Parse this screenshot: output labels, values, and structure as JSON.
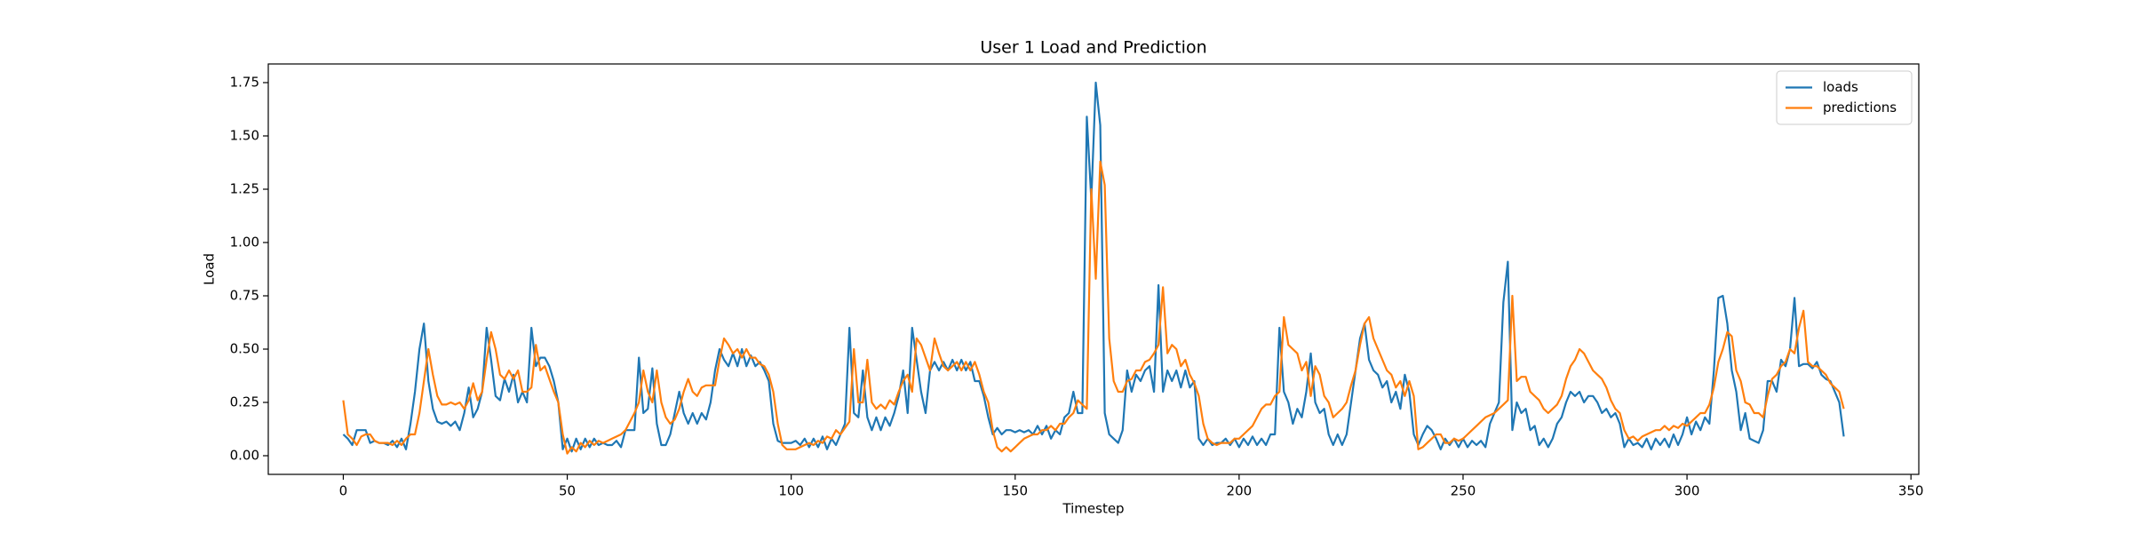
{
  "chart_data": {
    "type": "line",
    "title": "User 1 Load and Prediction",
    "x_label": "Timestep",
    "y_label": "Load",
    "x": [
      0,
      1,
      2,
      3,
      4,
      5,
      6,
      7,
      8,
      9,
      10,
      11,
      12,
      13,
      14,
      15,
      16,
      17,
      18,
      19,
      20,
      21,
      22,
      23,
      24,
      25,
      26,
      27,
      28,
      29,
      30,
      31,
      32,
      33,
      34,
      35,
      36,
      37,
      38,
      39,
      40,
      41,
      42,
      43,
      44,
      45,
      46,
      47,
      48,
      49,
      50,
      51,
      52,
      53,
      54,
      55,
      56,
      57,
      58,
      59,
      60,
      61,
      62,
      63,
      64,
      65,
      66,
      67,
      68,
      69,
      70,
      71,
      72,
      73,
      74,
      75,
      76,
      77,
      78,
      79,
      80,
      81,
      82,
      83,
      84,
      85,
      86,
      87,
      88,
      89,
      90,
      91,
      92,
      93,
      94,
      95,
      96,
      97,
      98,
      99,
      100,
      101,
      102,
      103,
      104,
      105,
      106,
      107,
      108,
      109,
      110,
      111,
      112,
      113,
      114,
      115,
      116,
      117,
      118,
      119,
      120,
      121,
      122,
      123,
      124,
      125,
      126,
      127,
      128,
      129,
      130,
      131,
      132,
      133,
      134,
      135,
      136,
      137,
      138,
      139,
      140,
      141,
      142,
      143,
      144,
      145,
      146,
      147,
      148,
      149,
      150,
      151,
      152,
      153,
      154,
      155,
      156,
      157,
      158,
      159,
      160,
      161,
      162,
      163,
      164,
      165,
      166,
      167,
      168,
      169,
      170,
      171,
      172,
      173,
      174,
      175,
      176,
      177,
      178,
      179,
      180,
      181,
      182,
      183,
      184,
      185,
      186,
      187,
      188,
      189,
      190,
      191,
      192,
      193,
      194,
      195,
      196,
      197,
      198,
      199,
      200,
      201,
      202,
      203,
      204,
      205,
      206,
      207,
      208,
      209,
      210,
      211,
      212,
      213,
      214,
      215,
      216,
      217,
      218,
      219,
      220,
      221,
      222,
      223,
      224,
      225,
      226,
      227,
      228,
      229,
      230,
      231,
      232,
      233,
      234,
      235,
      236,
      237,
      238,
      239,
      240,
      241,
      242,
      243,
      244,
      245,
      246,
      247,
      248,
      249,
      250,
      251,
      252,
      253,
      254,
      255,
      256,
      257,
      258,
      259,
      260,
      261,
      262,
      263,
      264,
      265,
      266,
      267,
      268,
      269,
      270,
      271,
      272,
      273,
      274,
      275,
      276,
      277,
      278,
      279,
      280,
      281,
      282,
      283,
      284,
      285,
      286,
      287,
      288,
      289,
      290,
      291,
      292,
      293,
      294,
      295,
      296,
      297,
      298,
      299,
      300,
      301,
      302,
      303,
      304,
      305,
      306,
      307,
      308,
      309,
      310,
      311,
      312,
      313,
      314,
      315,
      316,
      317,
      318,
      319,
      320,
      321,
      322,
      323,
      324,
      325,
      326,
      327,
      328,
      329,
      330,
      331,
      332,
      333,
      334,
      335
    ],
    "series": [
      {
        "name": "loads",
        "color": "#1f77b4",
        "values": [
          0.1,
          0.08,
          0.05,
          0.12,
          0.12,
          0.12,
          0.06,
          0.07,
          0.06,
          0.06,
          0.05,
          0.07,
          0.04,
          0.08,
          0.03,
          0.15,
          0.3,
          0.5,
          0.62,
          0.35,
          0.22,
          0.16,
          0.15,
          0.16,
          0.14,
          0.16,
          0.12,
          0.2,
          0.32,
          0.18,
          0.22,
          0.3,
          0.6,
          0.45,
          0.28,
          0.26,
          0.36,
          0.3,
          0.38,
          0.25,
          0.3,
          0.25,
          0.6,
          0.42,
          0.46,
          0.46,
          0.42,
          0.35,
          0.25,
          0.03,
          0.08,
          0.02,
          0.08,
          0.03,
          0.08,
          0.04,
          0.08,
          0.05,
          0.06,
          0.05,
          0.05,
          0.07,
          0.04,
          0.12,
          0.12,
          0.12,
          0.46,
          0.2,
          0.22,
          0.41,
          0.15,
          0.05,
          0.05,
          0.1,
          0.2,
          0.3,
          0.2,
          0.15,
          0.2,
          0.15,
          0.2,
          0.17,
          0.25,
          0.4,
          0.5,
          0.45,
          0.42,
          0.48,
          0.42,
          0.5,
          0.42,
          0.47,
          0.42,
          0.44,
          0.4,
          0.35,
          0.15,
          0.07,
          0.06,
          0.06,
          0.06,
          0.07,
          0.05,
          0.08,
          0.04,
          0.08,
          0.04,
          0.09,
          0.03,
          0.08,
          0.05,
          0.1,
          0.15,
          0.6,
          0.2,
          0.18,
          0.4,
          0.18,
          0.12,
          0.18,
          0.12,
          0.18,
          0.14,
          0.2,
          0.28,
          0.4,
          0.2,
          0.6,
          0.45,
          0.3,
          0.2,
          0.4,
          0.44,
          0.4,
          0.44,
          0.4,
          0.45,
          0.4,
          0.45,
          0.4,
          0.44,
          0.35,
          0.35,
          0.28,
          0.18,
          0.1,
          0.13,
          0.1,
          0.12,
          0.12,
          0.11,
          0.12,
          0.11,
          0.12,
          0.1,
          0.14,
          0.1,
          0.14,
          0.08,
          0.12,
          0.1,
          0.18,
          0.2,
          0.3,
          0.2,
          0.2,
          1.59,
          1.2,
          1.75,
          1.55,
          0.2,
          0.1,
          0.08,
          0.06,
          0.12,
          0.4,
          0.3,
          0.38,
          0.35,
          0.4,
          0.42,
          0.3,
          0.8,
          0.3,
          0.4,
          0.35,
          0.4,
          0.32,
          0.4,
          0.32,
          0.35,
          0.08,
          0.05,
          0.08,
          0.05,
          0.06,
          0.06,
          0.08,
          0.05,
          0.08,
          0.04,
          0.08,
          0.05,
          0.09,
          0.05,
          0.08,
          0.05,
          0.1,
          0.1,
          0.6,
          0.3,
          0.25,
          0.15,
          0.22,
          0.18,
          0.3,
          0.48,
          0.25,
          0.2,
          0.22,
          0.1,
          0.05,
          0.1,
          0.05,
          0.1,
          0.25,
          0.4,
          0.55,
          0.62,
          0.45,
          0.4,
          0.38,
          0.32,
          0.35,
          0.25,
          0.3,
          0.22,
          0.38,
          0.3,
          0.1,
          0.05,
          0.1,
          0.14,
          0.12,
          0.08,
          0.03,
          0.08,
          0.05,
          0.08,
          0.04,
          0.08,
          0.04,
          0.07,
          0.05,
          0.07,
          0.04,
          0.15,
          0.2,
          0.25,
          0.72,
          0.91,
          0.12,
          0.25,
          0.2,
          0.22,
          0.12,
          0.14,
          0.05,
          0.08,
          0.04,
          0.08,
          0.15,
          0.18,
          0.25,
          0.3,
          0.28,
          0.3,
          0.25,
          0.28,
          0.28,
          0.25,
          0.2,
          0.22,
          0.18,
          0.2,
          0.15,
          0.04,
          0.08,
          0.05,
          0.06,
          0.04,
          0.08,
          0.03,
          0.08,
          0.05,
          0.08,
          0.04,
          0.1,
          0.05,
          0.1,
          0.18,
          0.1,
          0.16,
          0.12,
          0.18,
          0.15,
          0.4,
          0.74,
          0.75,
          0.62,
          0.4,
          0.3,
          0.12,
          0.2,
          0.08,
          0.07,
          0.06,
          0.12,
          0.35,
          0.35,
          0.3,
          0.45,
          0.42,
          0.5,
          0.74,
          0.42,
          0.43,
          0.43,
          0.41,
          0.44,
          0.38,
          0.36,
          0.35,
          0.3,
          0.25,
          0.09
        ]
      },
      {
        "name": "predictions",
        "color": "#ff7f0e",
        "values": [
          0.26,
          0.1,
          0.08,
          0.05,
          0.09,
          0.1,
          0.1,
          0.07,
          0.06,
          0.06,
          0.06,
          0.05,
          0.07,
          0.05,
          0.08,
          0.1,
          0.1,
          0.2,
          0.35,
          0.5,
          0.38,
          0.28,
          0.24,
          0.24,
          0.25,
          0.24,
          0.25,
          0.22,
          0.26,
          0.34,
          0.26,
          0.3,
          0.45,
          0.58,
          0.5,
          0.38,
          0.36,
          0.4,
          0.36,
          0.4,
          0.3,
          0.3,
          0.32,
          0.52,
          0.4,
          0.42,
          0.36,
          0.3,
          0.25,
          0.1,
          0.01,
          0.04,
          0.02,
          0.06,
          0.04,
          0.07,
          0.05,
          0.07,
          0.06,
          0.07,
          0.08,
          0.09,
          0.1,
          0.12,
          0.16,
          0.2,
          0.25,
          0.4,
          0.3,
          0.25,
          0.4,
          0.25,
          0.18,
          0.15,
          0.17,
          0.22,
          0.3,
          0.36,
          0.3,
          0.28,
          0.32,
          0.33,
          0.33,
          0.33,
          0.45,
          0.55,
          0.52,
          0.48,
          0.5,
          0.46,
          0.5,
          0.46,
          0.46,
          0.43,
          0.42,
          0.38,
          0.3,
          0.15,
          0.05,
          0.03,
          0.03,
          0.03,
          0.04,
          0.05,
          0.06,
          0.05,
          0.07,
          0.06,
          0.09,
          0.08,
          0.12,
          0.1,
          0.13,
          0.16,
          0.5,
          0.25,
          0.25,
          0.45,
          0.25,
          0.22,
          0.24,
          0.22,
          0.26,
          0.24,
          0.3,
          0.35,
          0.38,
          0.3,
          0.55,
          0.52,
          0.46,
          0.4,
          0.55,
          0.48,
          0.42,
          0.4,
          0.42,
          0.44,
          0.4,
          0.44,
          0.4,
          0.44,
          0.38,
          0.3,
          0.25,
          0.12,
          0.04,
          0.02,
          0.04,
          0.02,
          0.04,
          0.06,
          0.08,
          0.09,
          0.1,
          0.1,
          0.12,
          0.12,
          0.14,
          0.12,
          0.15,
          0.15,
          0.18,
          0.2,
          0.26,
          0.24,
          0.22,
          1.25,
          0.83,
          1.38,
          1.27,
          0.55,
          0.35,
          0.3,
          0.3,
          0.35,
          0.36,
          0.4,
          0.4,
          0.44,
          0.45,
          0.48,
          0.52,
          0.79,
          0.48,
          0.52,
          0.5,
          0.42,
          0.45,
          0.38,
          0.34,
          0.28,
          0.15,
          0.08,
          0.06,
          0.05,
          0.06,
          0.06,
          0.06,
          0.08,
          0.08,
          0.1,
          0.12,
          0.14,
          0.18,
          0.22,
          0.24,
          0.24,
          0.28,
          0.3,
          0.65,
          0.52,
          0.5,
          0.48,
          0.4,
          0.44,
          0.28,
          0.42,
          0.38,
          0.28,
          0.25,
          0.18,
          0.2,
          0.22,
          0.25,
          0.33,
          0.4,
          0.52,
          0.62,
          0.65,
          0.55,
          0.5,
          0.45,
          0.4,
          0.38,
          0.32,
          0.35,
          0.28,
          0.35,
          0.28,
          0.03,
          0.04,
          0.06,
          0.08,
          0.1,
          0.1,
          0.06,
          0.06,
          0.08,
          0.07,
          0.08,
          0.1,
          0.12,
          0.14,
          0.16,
          0.18,
          0.19,
          0.2,
          0.22,
          0.24,
          0.26,
          0.75,
          0.35,
          0.37,
          0.37,
          0.3,
          0.28,
          0.26,
          0.22,
          0.2,
          0.22,
          0.24,
          0.28,
          0.36,
          0.42,
          0.45,
          0.5,
          0.48,
          0.44,
          0.4,
          0.38,
          0.36,
          0.32,
          0.26,
          0.22,
          0.2,
          0.12,
          0.08,
          0.09,
          0.07,
          0.09,
          0.1,
          0.11,
          0.12,
          0.12,
          0.14,
          0.12,
          0.14,
          0.13,
          0.15,
          0.14,
          0.16,
          0.18,
          0.2,
          0.2,
          0.24,
          0.32,
          0.44,
          0.5,
          0.58,
          0.56,
          0.4,
          0.35,
          0.25,
          0.24,
          0.2,
          0.2,
          0.18,
          0.28,
          0.36,
          0.38,
          0.42,
          0.44,
          0.5,
          0.48,
          0.6,
          0.68,
          0.44,
          0.42,
          0.42,
          0.4,
          0.38,
          0.34,
          0.32,
          0.3,
          0.22
        ]
      }
    ],
    "xlim": [
      -16.75,
      351.75
    ],
    "ylim": [
      -0.0875,
      1.8375
    ],
    "xticks": [
      0,
      50,
      100,
      150,
      200,
      250,
      300,
      350
    ],
    "yticks": [
      {
        "value": 0,
        "label": "0.00"
      },
      0.25,
      {
        "value": 0.5,
        "label": "0.50"
      },
      0.75,
      {
        "value": 1,
        "label": "1.00"
      },
      1.25,
      {
        "value": 1.5,
        "label": "1.50"
      },
      1.75
    ],
    "legend": "upper right",
    "grid": false
  }
}
